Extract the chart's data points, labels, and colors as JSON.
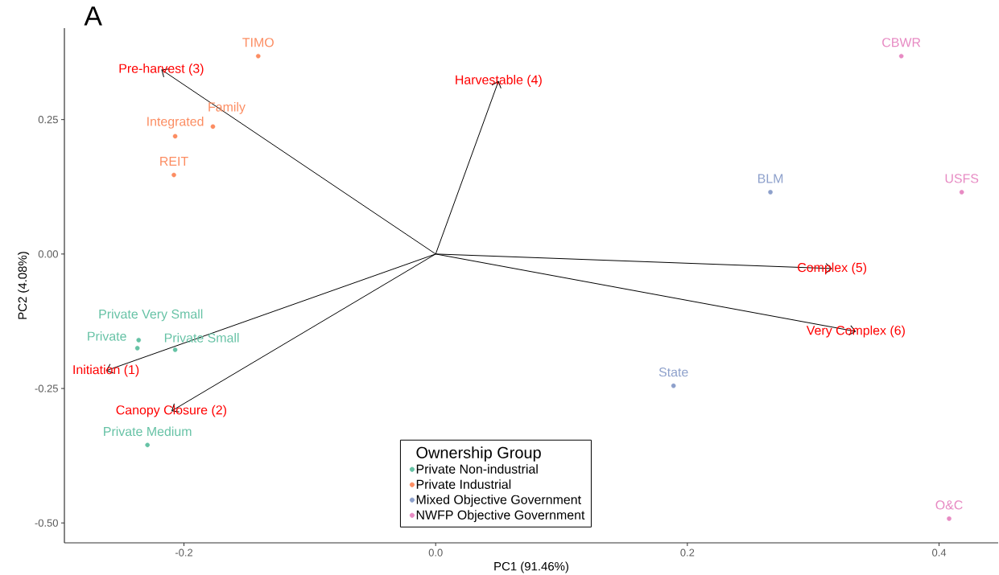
{
  "chart_data": {
    "type": "scatter",
    "title": "A",
    "xlabel": "PC1 (91.46%)",
    "ylabel": "PC2 (4.08%)",
    "legend_title": "Ownership Group",
    "legend": "bottom",
    "xlim": [
      -0.295,
      0.447
    ],
    "ylim": [
      -0.537,
      0.42
    ],
    "xticks": [
      {
        "value": -0.2,
        "label": "-0.2"
      },
      {
        "value": 0,
        "label": "0.0"
      },
      {
        "value": 0.2,
        "label": "0.2"
      },
      {
        "value": 0.4,
        "label": "0.4"
      }
    ],
    "yticks": [
      {
        "value": -0.5,
        "label": "-0.50"
      },
      {
        "value": -0.25,
        "label": "-0.25"
      },
      {
        "value": 0,
        "label": "0.00"
      },
      {
        "value": 0.25,
        "label": "0.25"
      }
    ],
    "annotations": [
      {
        "text": "Initiation (1)",
        "x": -0.262,
        "y": -0.217
      },
      {
        "text": "Canopy Closure (2)",
        "x": -0.21,
        "y": -0.292
      },
      {
        "text": "Pre-harvest (3)",
        "x": -0.218,
        "y": 0.343
      },
      {
        "text": "Harvestable (4)",
        "x": 0.05,
        "y": 0.322
      },
      {
        "text": "Complex (5)",
        "x": 0.315,
        "y": -0.027
      },
      {
        "text": "Very Complex (6)",
        "x": 0.334,
        "y": -0.144
      }
    ],
    "series": [
      {
        "name": "Private Non-industrial",
        "color": "#66c2a5",
        "x": [
          -0.236,
          -0.237,
          -0.207,
          -0.229
        ],
        "values": [
          -0.16,
          -0.175,
          -0.178,
          -0.355
        ],
        "value_labels": [
          "Private Very Small",
          "Private",
          "Private Small",
          "Private Medium"
        ]
      },
      {
        "name": "Private Industrial",
        "color": "#fc8d62",
        "x": [
          -0.141,
          -0.177,
          -0.207,
          -0.208
        ],
        "values": [
          0.368,
          0.237,
          0.219,
          0.147
        ],
        "value_labels": [
          "TIMO",
          "Family",
          "Integrated",
          "REIT"
        ]
      },
      {
        "name": "Mixed Objective Government",
        "color": "#8da0cb",
        "x": [
          0.266,
          0.189
        ],
        "values": [
          0.115,
          -0.245
        ],
        "value_labels": [
          "BLM",
          "State"
        ]
      },
      {
        "name": "NWFP Objective Government",
        "color": "#e78ac3",
        "x": [
          0.37,
          0.418,
          0.408
        ],
        "values": [
          0.368,
          0.115,
          -0.492
        ],
        "value_labels": [
          "CBWR",
          "USFS",
          "O&C"
        ]
      },
      {
        "type": "line",
        "color": "#000000",
        "x": [
          0,
          -0.262
        ],
        "values": [
          0,
          -0.217
        ]
      },
      {
        "type": "line",
        "color": "#000000",
        "x": [
          0,
          -0.21
        ],
        "values": [
          0,
          -0.292
        ]
      },
      {
        "type": "line",
        "color": "#000000",
        "x": [
          0,
          -0.218
        ],
        "values": [
          0,
          0.343
        ]
      },
      {
        "type": "line",
        "color": "#000000",
        "x": [
          0,
          0.05
        ],
        "values": [
          0,
          0.322
        ]
      },
      {
        "type": "line",
        "color": "#000000",
        "x": [
          0,
          0.315
        ],
        "values": [
          0,
          -0.027
        ]
      },
      {
        "type": "line",
        "color": "#000000",
        "x": [
          0,
          0.334
        ],
        "values": [
          0,
          -0.144
        ]
      }
    ]
  }
}
